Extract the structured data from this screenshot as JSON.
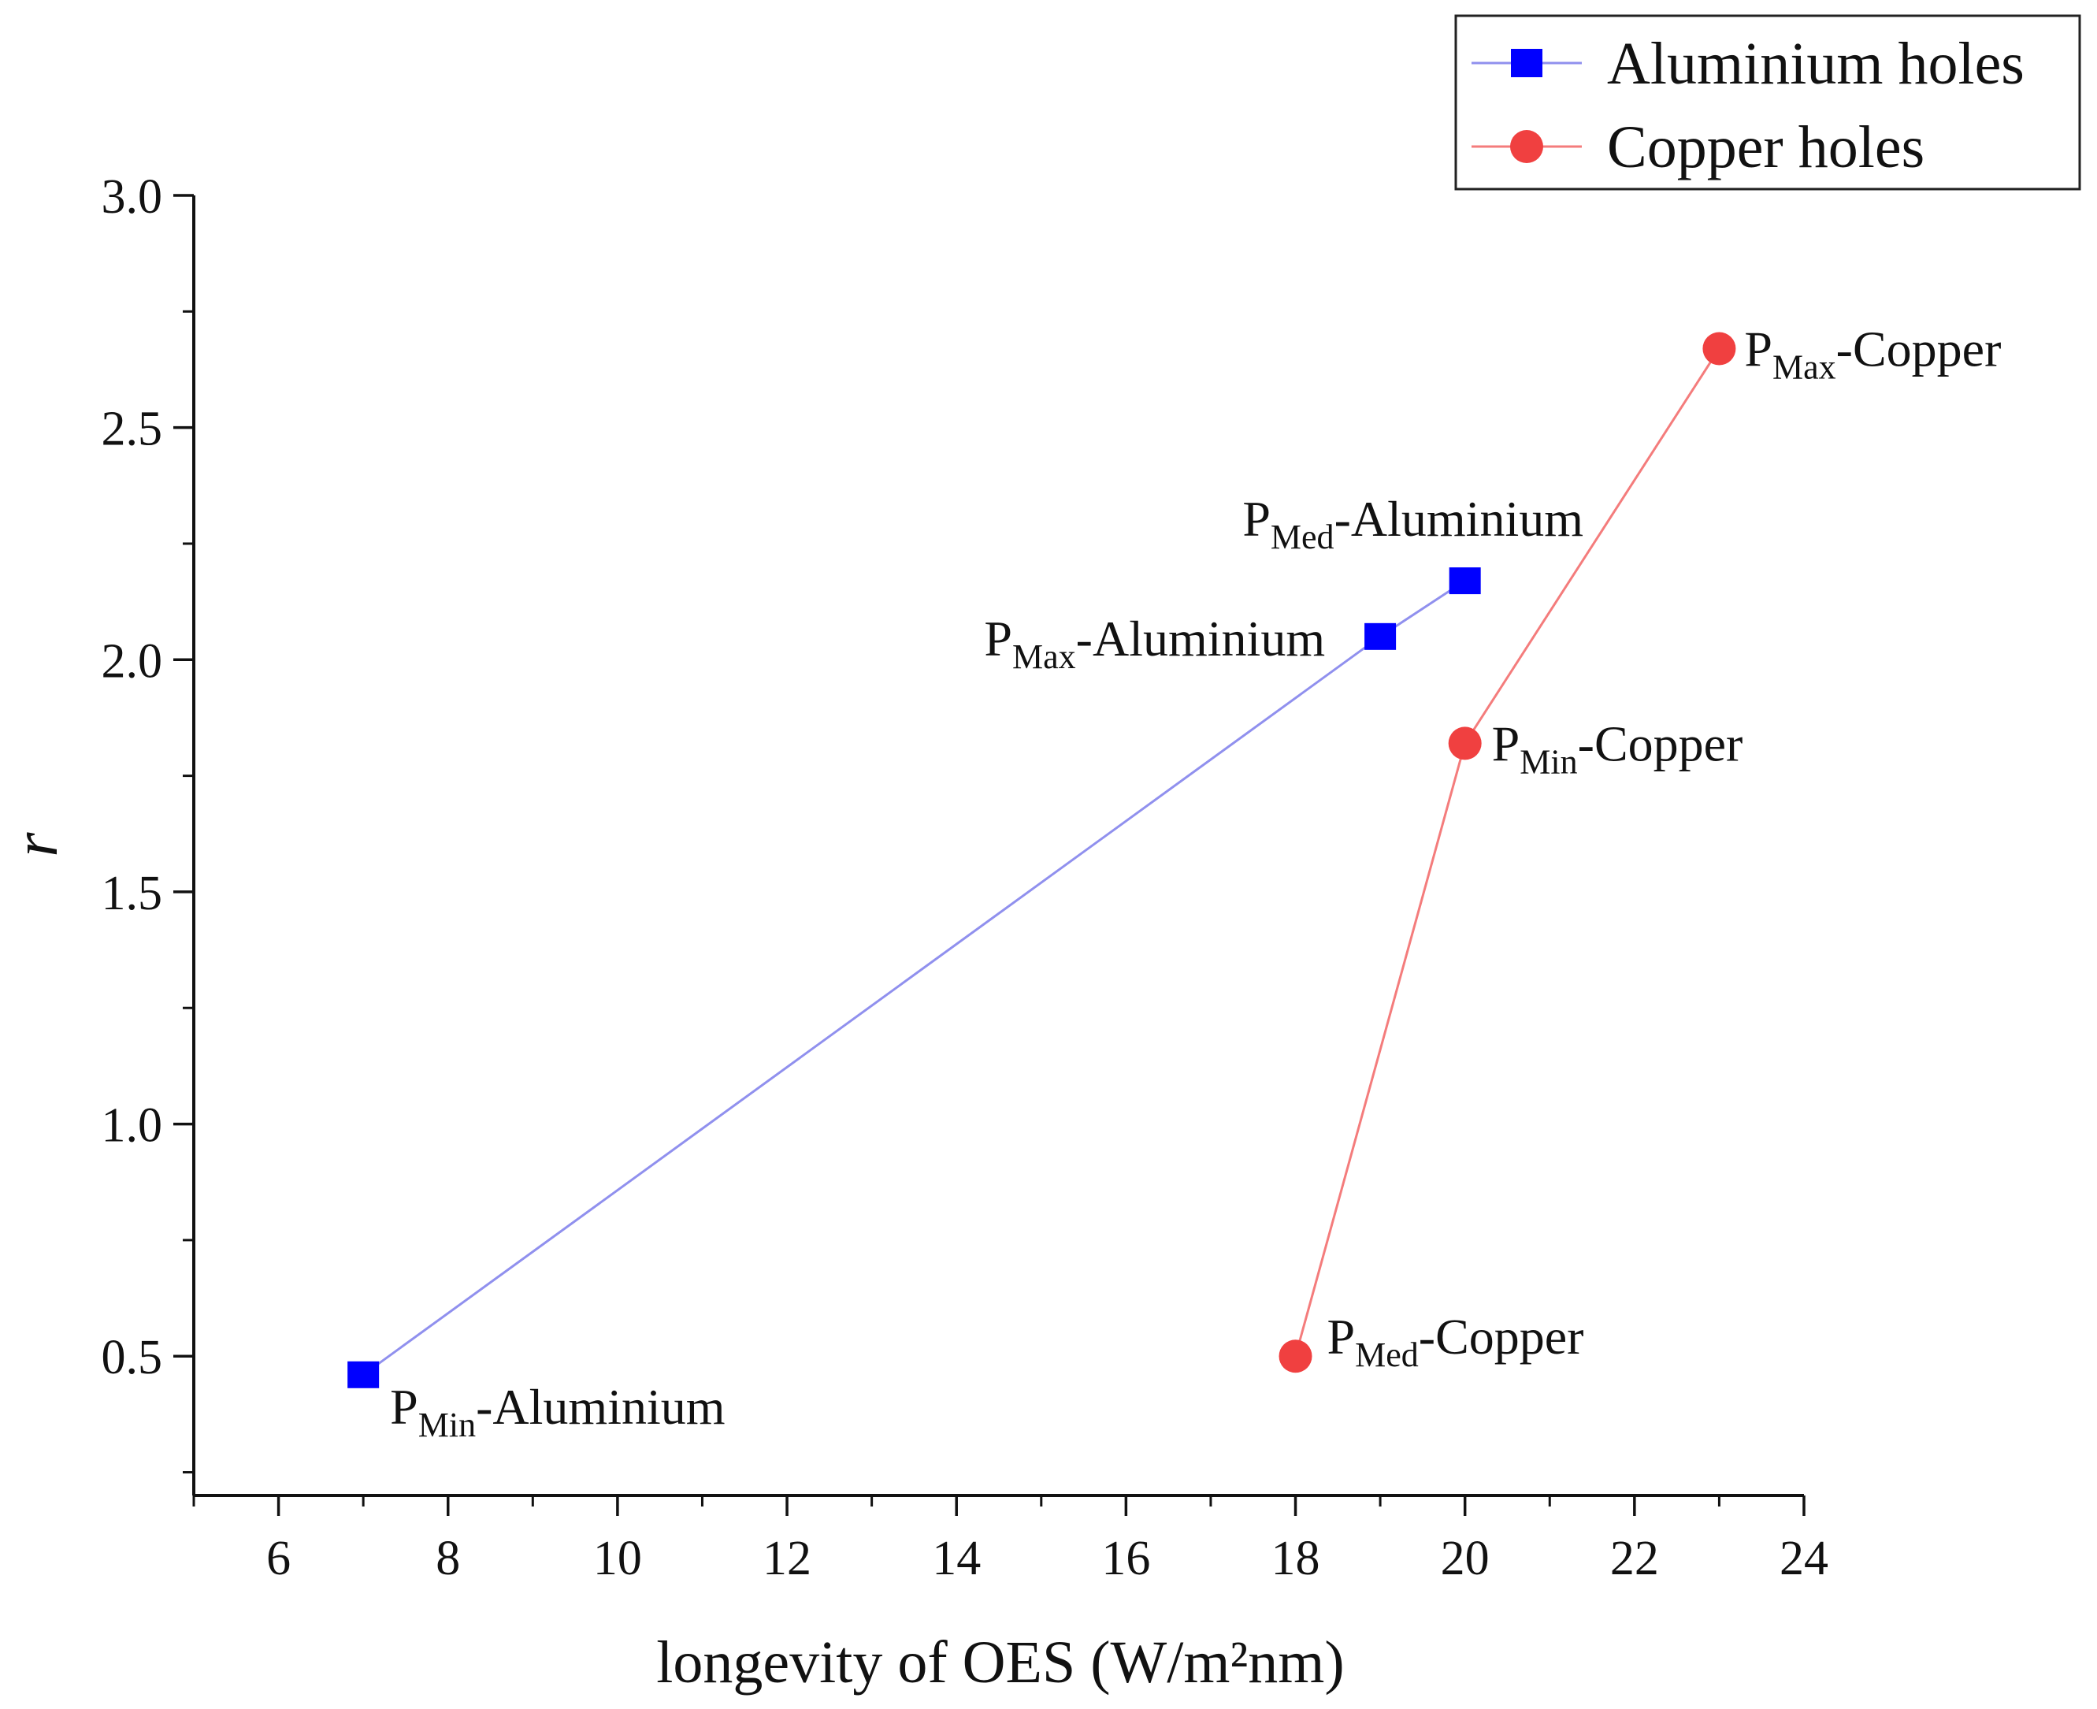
{
  "chart_data": {
    "type": "line",
    "title": "",
    "xlabel": "longevity of OES (W/m²nm)",
    "ylabel": "r",
    "xlim": [
      5,
      24
    ],
    "ylim": [
      0.2,
      3.0
    ],
    "x_ticks": [
      6,
      8,
      10,
      12,
      14,
      16,
      18,
      20,
      22,
      24
    ],
    "x_tick_labels": [
      "6",
      "8",
      "10",
      "12",
      "14",
      "16",
      "18",
      "20",
      "22",
      "24"
    ],
    "y_ticks": [
      0.5,
      1.0,
      1.5,
      2.0,
      2.5,
      3.0
    ],
    "y_tick_labels": [
      "0.5",
      "1.0",
      "1.5",
      "2.0",
      "2.5",
      "3.0"
    ],
    "grid": false,
    "legend_position": "top-right",
    "series": [
      {
        "name": "Aluminium holes",
        "color": "#0000ff",
        "line_color": "#9090ee",
        "marker": "square",
        "points": [
          {
            "x": 7,
            "y": 0.46,
            "label_main": "P",
            "label_sub": "Min",
            "label_rest": "-Aluminium"
          },
          {
            "x": 19,
            "y": 2.05,
            "label_main": "P",
            "label_sub": "Max",
            "label_rest": "-Aluminium"
          },
          {
            "x": 20,
            "y": 2.17,
            "label_main": "P",
            "label_sub": "Med",
            "label_rest": "-Aluminium"
          }
        ]
      },
      {
        "name": "Copper holes",
        "color": "#f04040",
        "line_color": "#f47c7c",
        "marker": "circle",
        "points": [
          {
            "x": 18,
            "y": 0.5,
            "label_main": "P",
            "label_sub": "Med",
            "label_rest": "-Copper"
          },
          {
            "x": 20,
            "y": 1.82,
            "label_main": "P",
            "label_sub": "Min",
            "label_rest": "-Copper"
          },
          {
            "x": 23,
            "y": 2.67,
            "label_main": "P",
            "label_sub": "Max",
            "label_rest": "-Copper"
          }
        ]
      }
    ]
  }
}
